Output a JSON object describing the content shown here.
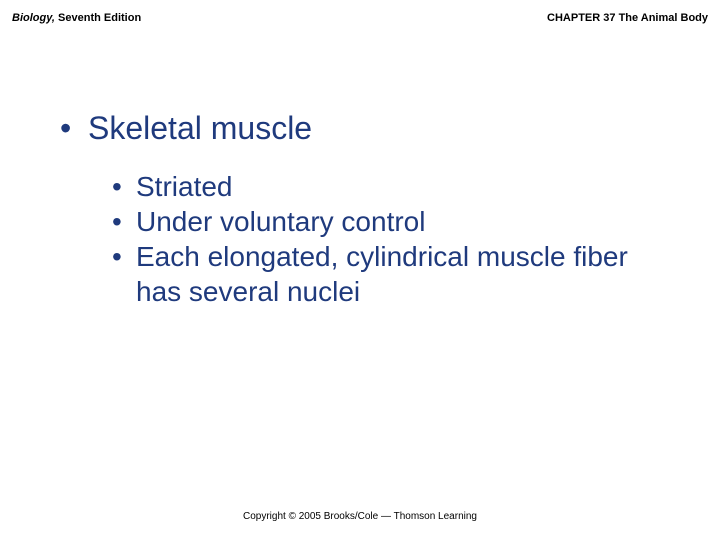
{
  "header": {
    "book_title_italic": "Biology,",
    "book_edition": " Seventh Edition",
    "chapter": "CHAPTER 37 The Animal Body"
  },
  "content": {
    "main_bullet": "Skeletal muscle",
    "sub_bullets": [
      "Striated",
      "Under voluntary control",
      "Each elongated, cylindrical muscle fiber has several nuclei"
    ]
  },
  "footer": {
    "copyright": "Copyright © 2005 Brooks/Cole — Thomson Learning"
  },
  "colors": {
    "text_heading": "#1f3a7d",
    "text_header_footer": "#000000",
    "background": "#ffffff"
  },
  "typography": {
    "header_fontsize": 11,
    "main_bullet_fontsize": 32,
    "sub_bullet_fontsize": 28,
    "footer_fontsize": 10
  }
}
